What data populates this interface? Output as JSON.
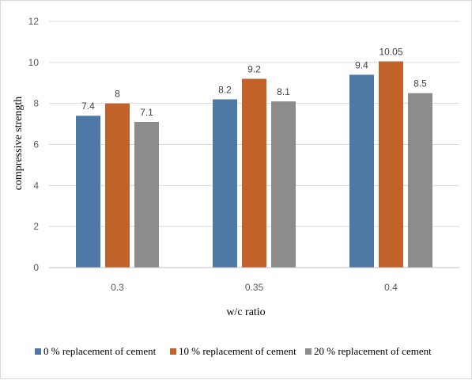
{
  "chart_data": {
    "type": "bar",
    "categories": [
      "0.3",
      "0.35",
      "0.4"
    ],
    "series": [
      {
        "name": "0 % replacement of cement",
        "values": [
          7.4,
          8.2,
          9.4
        ],
        "labels": [
          "7.4",
          "8.2",
          "9.4"
        ],
        "color": "#4e79a7"
      },
      {
        "name": "10 % replacement of cement",
        "values": [
          8,
          9.2,
          10.05
        ],
        "labels": [
          "8",
          "9.2",
          "10.05"
        ],
        "color": "#c0622a"
      },
      {
        "name": "20 % replacement of cement",
        "values": [
          7.1,
          8.1,
          8.5
        ],
        "labels": [
          "7.1",
          "8.1",
          "8.5"
        ],
        "color": "#8c8c8c"
      }
    ],
    "xlabel": "w/c ratio",
    "ylabel": "compressive strength",
    "ylim": [
      0,
      12
    ],
    "yticks": [
      "0",
      "2",
      "4",
      "6",
      "8",
      "10",
      "12"
    ],
    "grid": true,
    "legend_position": "bottom"
  }
}
